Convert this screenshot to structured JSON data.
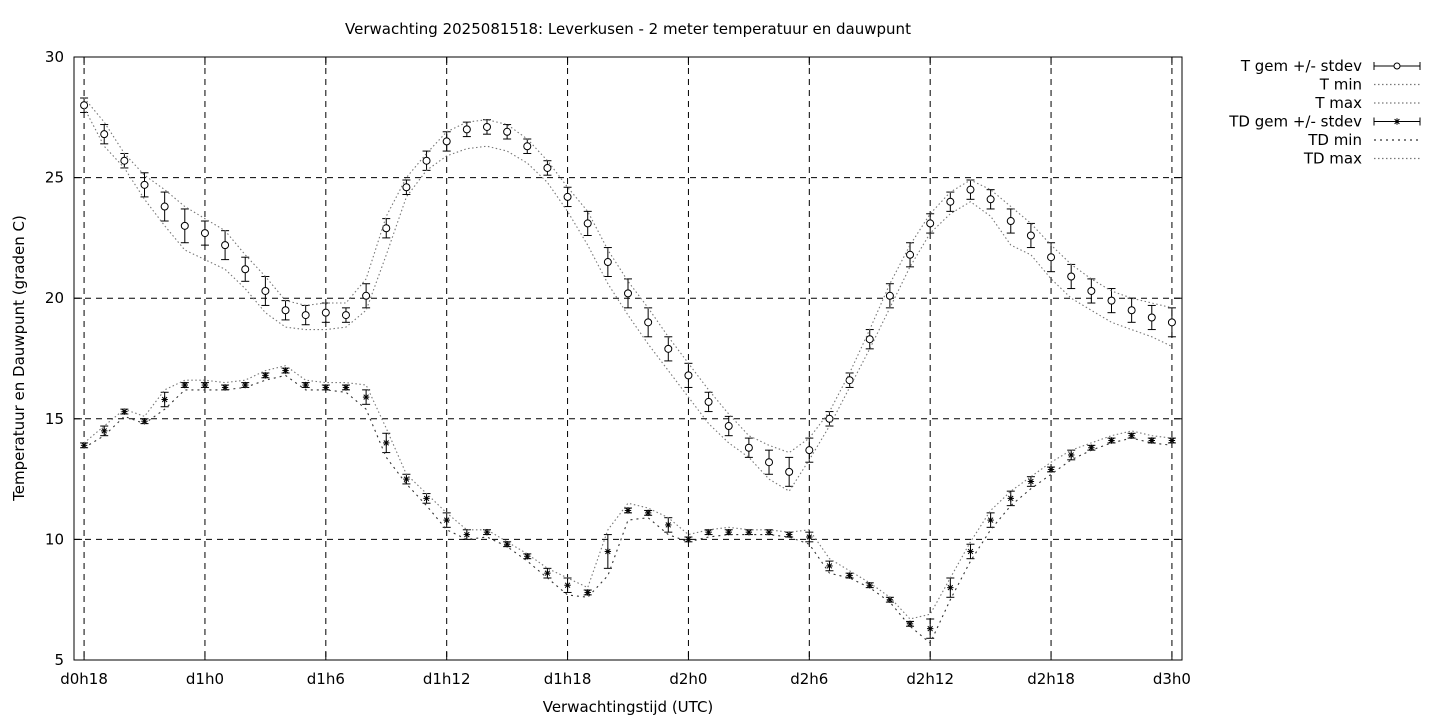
{
  "chart_data": {
    "type": "line",
    "title": "Verwachting 2025081518: Leverkusen - 2 meter temperatuur en dauwpunt",
    "xlabel": "Verwachtingstijd (UTC)",
    "ylabel": "Temperatuur en Dauwpunt (graden C)",
    "ylim": [
      5,
      30
    ],
    "yticks": [
      5,
      10,
      15,
      20,
      25,
      30
    ],
    "xlim": [
      -0.5,
      54.5
    ],
    "xticks": [
      {
        "x": 0,
        "label": "d0h18"
      },
      {
        "x": 6,
        "label": "d1h0"
      },
      {
        "x": 12,
        "label": "d1h6"
      },
      {
        "x": 18,
        "label": "d1h12"
      },
      {
        "x": 24,
        "label": "d1h18"
      },
      {
        "x": 30,
        "label": "d2h0"
      },
      {
        "x": 36,
        "label": "d2h6"
      },
      {
        "x": 42,
        "label": "d2h12"
      },
      {
        "x": 48,
        "label": "d2h18"
      },
      {
        "x": 54,
        "label": "d3h0"
      }
    ],
    "grid": true,
    "legend_position": "outside-top-right",
    "x": [
      0,
      1,
      2,
      3,
      4,
      5,
      6,
      7,
      8,
      9,
      10,
      11,
      12,
      13,
      14,
      15,
      16,
      17,
      18,
      19,
      20,
      21,
      22,
      23,
      24,
      25,
      26,
      27,
      28,
      29,
      30,
      31,
      32,
      33,
      34,
      35,
      36,
      37,
      38,
      39,
      40,
      41,
      42,
      43,
      44,
      45,
      46,
      47,
      48,
      49,
      50,
      51,
      52,
      53,
      54
    ],
    "series": [
      {
        "name": "T gem +/- stdev",
        "marker": "circle",
        "values": [
          28.0,
          26.8,
          25.7,
          24.7,
          23.8,
          23.0,
          22.7,
          22.2,
          21.2,
          20.3,
          19.5,
          19.3,
          19.4,
          19.3,
          20.1,
          22.9,
          24.6,
          25.7,
          26.5,
          27.0,
          27.1,
          26.9,
          26.3,
          25.4,
          24.2,
          23.1,
          21.5,
          20.2,
          19.0,
          17.9,
          16.8,
          15.7,
          14.7,
          13.8,
          13.2,
          12.8,
          13.7,
          15.0,
          16.6,
          18.3,
          20.1,
          21.8,
          23.1,
          24.0,
          24.5,
          24.1,
          23.2,
          22.6,
          21.7,
          20.9,
          20.3,
          19.9,
          19.5,
          19.2,
          19.0
        ],
        "stdev": [
          0.3,
          0.4,
          0.3,
          0.5,
          0.6,
          0.7,
          0.5,
          0.6,
          0.5,
          0.6,
          0.4,
          0.4,
          0.4,
          0.3,
          0.5,
          0.4,
          0.3,
          0.4,
          0.4,
          0.3,
          0.3,
          0.3,
          0.3,
          0.3,
          0.4,
          0.5,
          0.6,
          0.6,
          0.6,
          0.5,
          0.5,
          0.4,
          0.4,
          0.4,
          0.5,
          0.6,
          0.5,
          0.3,
          0.3,
          0.4,
          0.5,
          0.5,
          0.4,
          0.4,
          0.4,
          0.4,
          0.5,
          0.5,
          0.6,
          0.5,
          0.5,
          0.5,
          0.5,
          0.5,
          0.6
        ]
      },
      {
        "name": "T min",
        "values": [
          27.9,
          26.3,
          25.4,
          24.1,
          23.0,
          22.0,
          21.6,
          21.2,
          20.4,
          19.4,
          18.8,
          18.7,
          18.7,
          18.8,
          19.5,
          21.8,
          24.2,
          25.3,
          25.9,
          26.2,
          26.3,
          26.1,
          25.6,
          24.8,
          23.6,
          22.2,
          20.6,
          19.3,
          18.1,
          17.0,
          15.9,
          14.8,
          14.0,
          13.4,
          12.5,
          12.0,
          13.3,
          14.7,
          16.3,
          17.9,
          19.6,
          21.3,
          22.7,
          23.5,
          24.0,
          23.4,
          22.2,
          21.8,
          20.8,
          20.0,
          19.5,
          19.0,
          18.7,
          18.4,
          18.0
        ]
      },
      {
        "name": "T max",
        "values": [
          28.3,
          27.3,
          26.0,
          25.1,
          24.5,
          23.8,
          23.3,
          22.8,
          21.8,
          20.9,
          19.9,
          19.7,
          19.8,
          19.8,
          20.8,
          23.4,
          25.0,
          26.0,
          26.9,
          27.3,
          27.4,
          27.2,
          26.6,
          25.7,
          24.6,
          23.6,
          22.0,
          20.7,
          19.6,
          18.4,
          17.3,
          16.2,
          15.2,
          14.3,
          13.9,
          13.6,
          14.2,
          15.3,
          16.9,
          18.7,
          20.6,
          22.2,
          23.5,
          24.4,
          24.9,
          24.5,
          23.8,
          23.1,
          22.2,
          21.4,
          20.8,
          20.3,
          20.0,
          19.8,
          19.6
        ]
      },
      {
        "name": "TD gem +/- stdev",
        "marker": "star",
        "values": [
          13.9,
          14.5,
          15.3,
          14.9,
          15.8,
          16.4,
          16.4,
          16.3,
          16.4,
          16.8,
          17.0,
          16.4,
          16.3,
          16.3,
          15.9,
          14.0,
          12.5,
          11.7,
          10.8,
          10.2,
          10.3,
          9.8,
          9.3,
          8.6,
          8.1,
          7.8,
          9.5,
          11.2,
          11.1,
          10.6,
          10.0,
          10.3,
          10.3,
          10.3,
          10.3,
          10.2,
          10.1,
          8.9,
          8.5,
          8.1,
          7.5,
          6.5,
          6.3,
          8.0,
          9.5,
          10.8,
          11.7,
          12.4,
          12.9,
          13.5,
          13.8,
          14.1,
          14.3,
          14.1,
          14.1
        ],
        "stdev": [
          0.1,
          0.2,
          0.1,
          0.1,
          0.3,
          0.1,
          0.1,
          0.1,
          0.1,
          0.1,
          0.1,
          0.1,
          0.1,
          0.1,
          0.3,
          0.4,
          0.2,
          0.2,
          0.3,
          0.2,
          0.1,
          0.1,
          0.1,
          0.2,
          0.3,
          0.1,
          0.7,
          0.1,
          0.1,
          0.3,
          0.1,
          0.1,
          0.1,
          0.1,
          0.1,
          0.1,
          0.2,
          0.2,
          0.1,
          0.1,
          0.1,
          0.1,
          0.4,
          0.4,
          0.3,
          0.3,
          0.3,
          0.2,
          0.1,
          0.2,
          0.1,
          0.1,
          0.1,
          0.1,
          0.1
        ]
      },
      {
        "name": "TD min",
        "values": [
          13.8,
          14.3,
          15.1,
          14.8,
          15.4,
          16.2,
          16.2,
          16.2,
          16.3,
          16.6,
          16.8,
          16.2,
          16.2,
          16.1,
          15.4,
          13.4,
          12.3,
          11.4,
          10.4,
          10.0,
          10.1,
          9.7,
          9.1,
          8.4,
          7.7,
          7.6,
          8.5,
          10.8,
          10.9,
          10.2,
          9.9,
          10.1,
          10.2,
          10.2,
          10.2,
          10.1,
          9.8,
          8.6,
          8.4,
          8.0,
          7.4,
          6.4,
          5.7,
          7.5,
          9.1,
          10.4,
          11.4,
          12.1,
          12.7,
          13.3,
          13.7,
          14.0,
          14.2,
          14.0,
          13.9
        ]
      },
      {
        "name": "TD max",
        "values": [
          14.0,
          14.7,
          15.4,
          15.1,
          16.2,
          16.6,
          16.6,
          16.5,
          16.6,
          17.0,
          17.2,
          16.6,
          16.5,
          16.5,
          16.4,
          14.6,
          12.7,
          11.9,
          11.1,
          10.4,
          10.4,
          9.9,
          9.4,
          8.8,
          8.4,
          8.0,
          10.4,
          11.5,
          11.3,
          10.9,
          10.2,
          10.4,
          10.5,
          10.4,
          10.4,
          10.3,
          10.4,
          9.2,
          8.7,
          8.2,
          7.6,
          6.7,
          6.9,
          8.4,
          9.9,
          11.2,
          12.0,
          12.6,
          13.2,
          13.7,
          14.0,
          14.3,
          14.5,
          14.3,
          14.2
        ]
      }
    ]
  }
}
